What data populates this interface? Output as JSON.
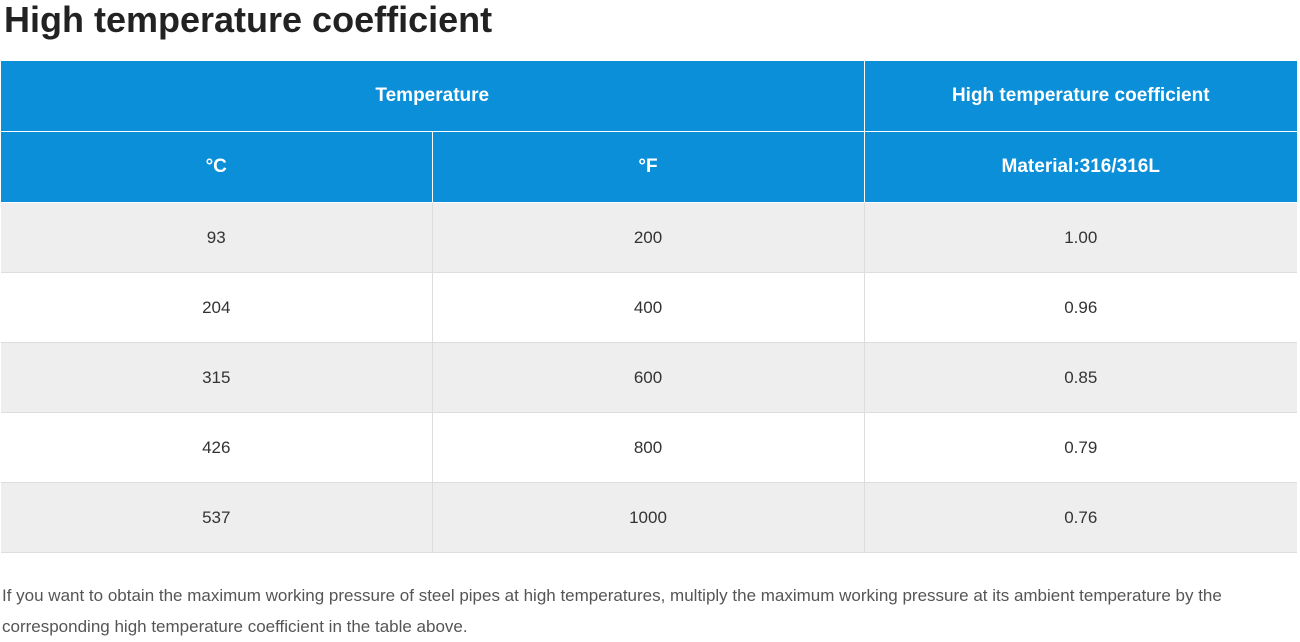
{
  "page": {
    "title": "High temperature coefficient"
  },
  "table": {
    "header": {
      "group_temperature": "Temperature",
      "group_coefficient": "High temperature coefficient",
      "col_celsius": "°C",
      "col_fahrenheit": "°F",
      "col_material": "Material:316/316L"
    },
    "rows": [
      {
        "celsius": "93",
        "fahrenheit": "200",
        "coefficient": "1.00"
      },
      {
        "celsius": "204",
        "fahrenheit": "400",
        "coefficient": "0.96"
      },
      {
        "celsius": "315",
        "fahrenheit": "600",
        "coefficient": "0.85"
      },
      {
        "celsius": "426",
        "fahrenheit": "800",
        "coefficient": "0.79"
      },
      {
        "celsius": "537",
        "fahrenheit": "1000",
        "coefficient": "0.76"
      }
    ],
    "colors": {
      "header_bg": "#0a8fd8",
      "header_text": "#ffffff",
      "row_stripe": "#eeeeee",
      "row_plain": "#ffffff"
    }
  },
  "footnote": {
    "text": "If you want to obtain the maximum working pressure of steel pipes at high temperatures, multiply the maximum working pressure at its ambient temperature by the corresponding high temperature coefficient in the table above."
  }
}
